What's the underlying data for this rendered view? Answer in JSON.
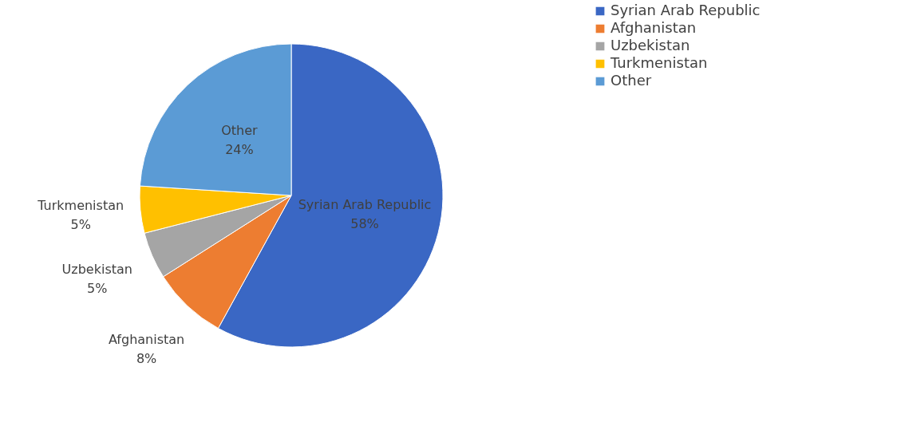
{
  "chart_data": {
    "type": "pie",
    "categories": [
      "Syrian Arab Republic",
      "Afghanistan",
      "Uzbekistan",
      "Turkmenistan",
      "Other"
    ],
    "values": [
      58,
      8,
      5,
      5,
      24
    ],
    "colors": [
      "#3a67c4",
      "#ed7d31",
      "#a5a5a5",
      "#ffc000",
      "#5b9bd5"
    ],
    "value_labels": [
      "58%",
      "8%",
      "5%",
      "5%",
      "24%"
    ],
    "legend": "right"
  }
}
